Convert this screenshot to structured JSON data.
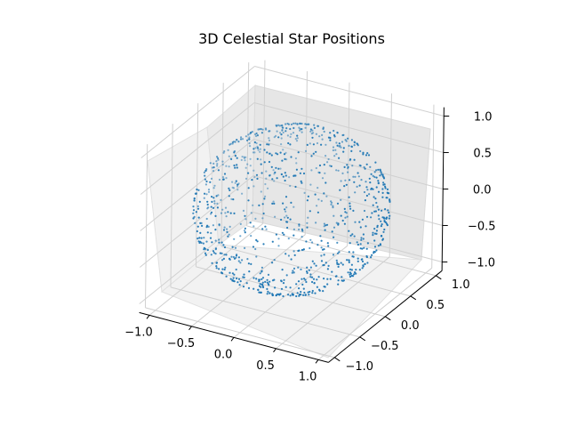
{
  "chart_data": {
    "type": "scatter",
    "title": "3D Celestial Star Positions",
    "xlabel": "",
    "ylabel": "",
    "zlabel": "",
    "xlim": [
      -1.0,
      1.0
    ],
    "ylim": [
      -1.0,
      1.0
    ],
    "zlim": [
      -1.0,
      1.0
    ],
    "x_ticks": [
      "−1.0",
      "−0.5",
      "0.0",
      "0.5",
      "1.0"
    ],
    "y_ticks": [
      "−1.0",
      "−0.5",
      "0.0",
      "0.5",
      "1.0"
    ],
    "z_ticks": [
      "−1.0",
      "−0.5",
      "0.0",
      "0.5",
      "1.0"
    ],
    "grid": true,
    "marker_color": "#1f77b4",
    "pane_color": "#f2f2f2",
    "series": [
      {
        "description_of_distribution": "points uniformly distributed on unit sphere surface (x^2+y^2+z^2=1)",
        "n_points": 1000
      }
    ]
  }
}
